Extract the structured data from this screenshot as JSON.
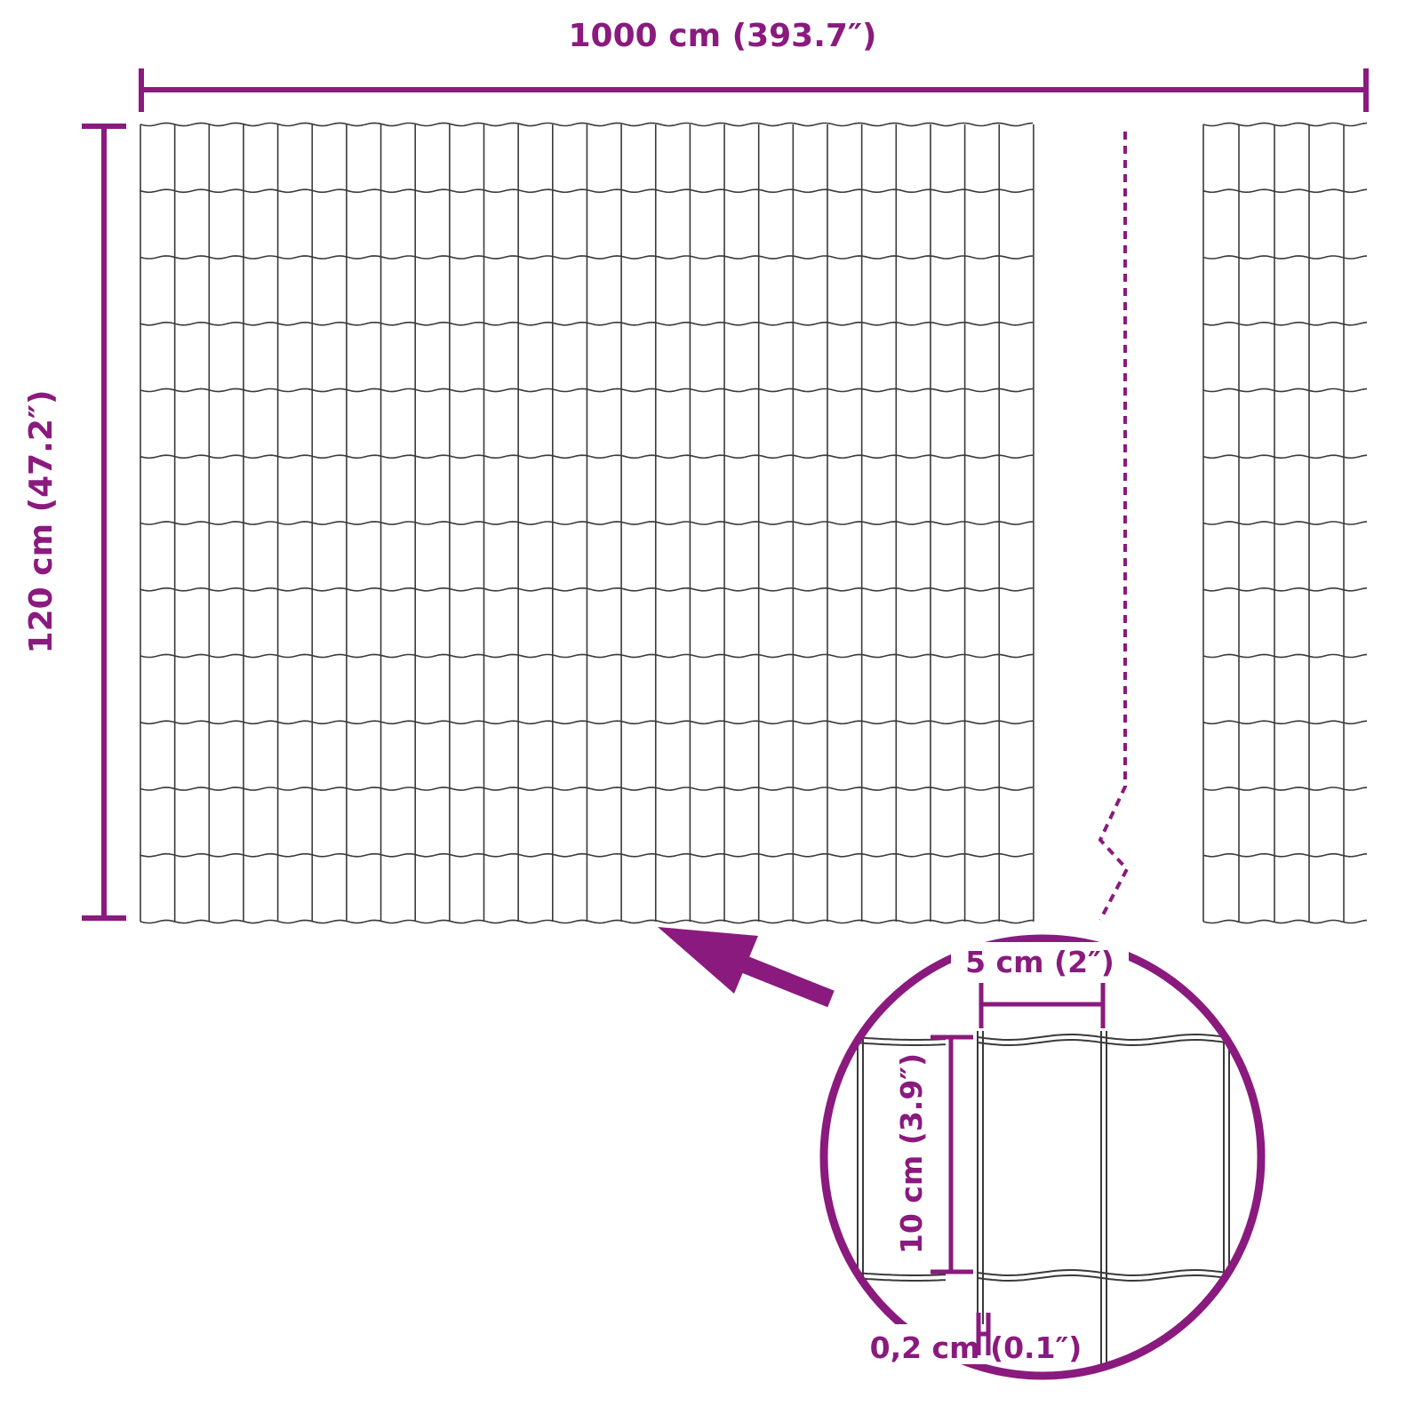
{
  "colors": {
    "accent": "#8a1a7e",
    "wire": "#3a3a3a"
  },
  "dimensions": {
    "width": "1000 cm (393.7″)",
    "height": "120 cm (47.2″)",
    "mesh_width": "5 cm (2″)",
    "mesh_height": "10 cm (3.9″)",
    "wire_diameter": "0,2 cm (0.1″)"
  }
}
